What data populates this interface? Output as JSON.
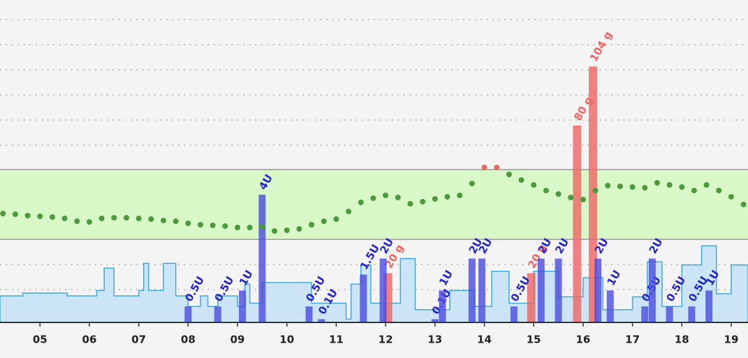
{
  "chart_data": {
    "type": "glucose",
    "xlim": [
      4.19,
      19.34
    ],
    "xticks": [
      {
        "value": 5,
        "label": "05"
      },
      {
        "value": 6,
        "label": "06"
      },
      {
        "value": 7,
        "label": "07"
      },
      {
        "value": 8,
        "label": "08"
      },
      {
        "value": 9,
        "label": "09"
      },
      {
        "value": 10,
        "label": "10"
      },
      {
        "value": 11,
        "label": "11"
      },
      {
        "value": 12,
        "label": "12"
      },
      {
        "value": 13,
        "label": "13"
      },
      {
        "value": 14,
        "label": "14"
      },
      {
        "value": 15,
        "label": "15"
      },
      {
        "value": 16,
        "label": "16"
      },
      {
        "value": 17,
        "label": "17"
      },
      {
        "value": 18,
        "label": "18"
      },
      {
        "value": 19,
        "label": "19"
      }
    ],
    "ylim": [
      -39,
      423
    ],
    "gridlines": [
      -27,
      8,
      44,
      215,
      251,
      287,
      323,
      359,
      395
    ],
    "target_range": [
      80,
      180
    ],
    "y2lim": [
      0,
      131
    ],
    "y3lim": [
      0,
      10.1
    ],
    "glucose": {
      "color": "#4c9a3c",
      "high_color": "#e26a6a",
      "x": [
        4.25,
        4.5,
        4.75,
        5,
        5.25,
        5.5,
        5.75,
        6,
        6.25,
        6.5,
        6.75,
        7,
        7.25,
        7.5,
        7.75,
        8,
        8.25,
        8.5,
        8.75,
        9,
        9.25,
        9.5,
        9.75,
        10,
        10.25,
        10.5,
        10.75,
        11,
        11.25,
        11.5,
        11.75,
        12,
        12.25,
        12.5,
        12.75,
        13,
        13.25,
        13.5,
        13.75,
        14,
        14.25,
        14.5,
        14.75,
        15,
        15.25,
        15.5,
        15.75,
        16,
        16.25,
        16.5,
        16.75,
        17,
        17.25,
        17.5,
        17.75,
        18,
        18.25,
        18.5,
        18.75,
        19,
        19.25
      ],
      "values": [
        117,
        116,
        114,
        113,
        112,
        110,
        106,
        105,
        110,
        111,
        111,
        110,
        109,
        107,
        106,
        103,
        101,
        100,
        99,
        97,
        97,
        98,
        92,
        93,
        95,
        101,
        106,
        109,
        120,
        133,
        139,
        143,
        140,
        131,
        134,
        138,
        141,
        143,
        160,
        183,
        183,
        173,
        165,
        158,
        150,
        145,
        140,
        137,
        150,
        157,
        156,
        155,
        154,
        161,
        158,
        155,
        150,
        158,
        150,
        141,
        130
      ]
    },
    "carbs": {
      "color": "#f06464",
      "x": [
        12.05,
        14.95,
        15.88,
        16.2
      ],
      "values": [
        20,
        20,
        80,
        104
      ],
      "value_labels": [
        "20 g",
        "20 g",
        "80 g",
        "104 g"
      ]
    },
    "boluses": {
      "color": "#4a4ae0",
      "label_color": "#2424c8",
      "x": [
        8.0,
        8.6,
        9.1,
        9.5,
        10.45,
        10.7,
        11.55,
        11.95,
        13.0,
        13.15,
        13.75,
        13.95,
        14.6,
        15.15,
        15.5,
        16.3,
        16.55,
        17.25,
        17.4,
        17.75,
        18.2,
        18.55
      ],
      "values": [
        0.5,
        0.5,
        1,
        4,
        0.5,
        0.1,
        1.5,
        2,
        0.1,
        1,
        2,
        2,
        0.5,
        2,
        2,
        2,
        1,
        0.5,
        2,
        0.5,
        0.5,
        1
      ],
      "value_labels": [
        "0.5U",
        "0.5U",
        "1U",
        "4U",
        "0.5U",
        "0.1U",
        "1.5U",
        "2U",
        "0.1U",
        "1U",
        "2U",
        "2U",
        "0.5U",
        "2U",
        "2U",
        "2U",
        "1U",
        "0.5U",
        "2U",
        "0.5U",
        "0.5U",
        "1U"
      ]
    },
    "basal": {
      "color": "#3fa9e0",
      "fill": "#c4e2f6",
      "x": [
        4.19,
        4.65,
        5.55,
        6.15,
        6.3,
        6.5,
        7.0,
        7.1,
        7.2,
        7.5,
        7.75,
        8.0,
        8.25,
        8.4,
        8.6,
        9.0,
        9.15,
        9.25,
        9.5,
        10.5,
        11.2,
        11.3,
        11.5,
        11.7,
        12.3,
        12.6,
        13.3,
        13.8,
        14.15,
        14.5,
        15.0,
        15.5,
        16.0,
        16.4,
        17.0,
        17.3,
        17.6,
        18.0,
        18.4,
        18.7,
        19.0
      ],
      "values": [
        0.83,
        0.92,
        0.83,
        1.0,
        1.7,
        0.83,
        1.0,
        1.85,
        1.0,
        1.85,
        0.83,
        0.5,
        0.83,
        0.5,
        0.83,
        0.5,
        1.2,
        0.6,
        1.25,
        0.6,
        0.1,
        1.2,
        1.8,
        0.6,
        2.0,
        0.4,
        1.0,
        0.5,
        1.6,
        0.6,
        1.6,
        0.8,
        1.4,
        0.4,
        0.8,
        1.9,
        0.5,
        1.8,
        2.4,
        0.9,
        1.8
      ]
    }
  }
}
